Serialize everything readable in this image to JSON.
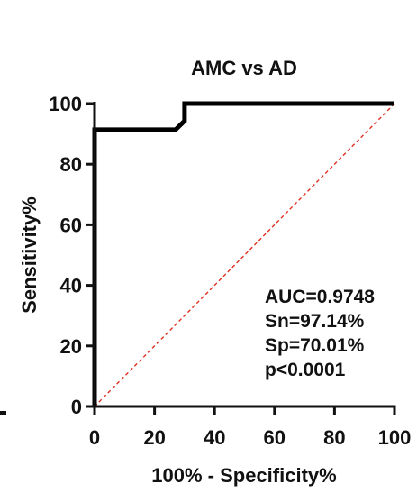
{
  "chart_data": {
    "type": "line",
    "title": "AMC vs AD",
    "xlabel": "100% - Specificity%",
    "ylabel": "Sensitivity%",
    "xlim": [
      0,
      100
    ],
    "ylim": [
      0,
      100
    ],
    "x_ticks": [
      "0",
      "20",
      "40",
      "60",
      "80",
      "100"
    ],
    "y_ticks": [
      "0",
      "20",
      "40",
      "60",
      "80",
      "100"
    ],
    "grid": false,
    "series": [
      {
        "x": [
          0,
          0,
          27,
          30,
          30,
          100
        ],
        "y": [
          0,
          91.4,
          91.4,
          94.3,
          100,
          100
        ],
        "color": "#000000"
      },
      {
        "x": [
          0,
          100
        ],
        "y": [
          0,
          100
        ],
        "color": "#e03020",
        "style": "dashed"
      }
    ],
    "annotations": [
      "AUC=0.9748",
      "Sn=97.14%",
      "Sp=70.01%",
      "p<0.0001"
    ]
  }
}
